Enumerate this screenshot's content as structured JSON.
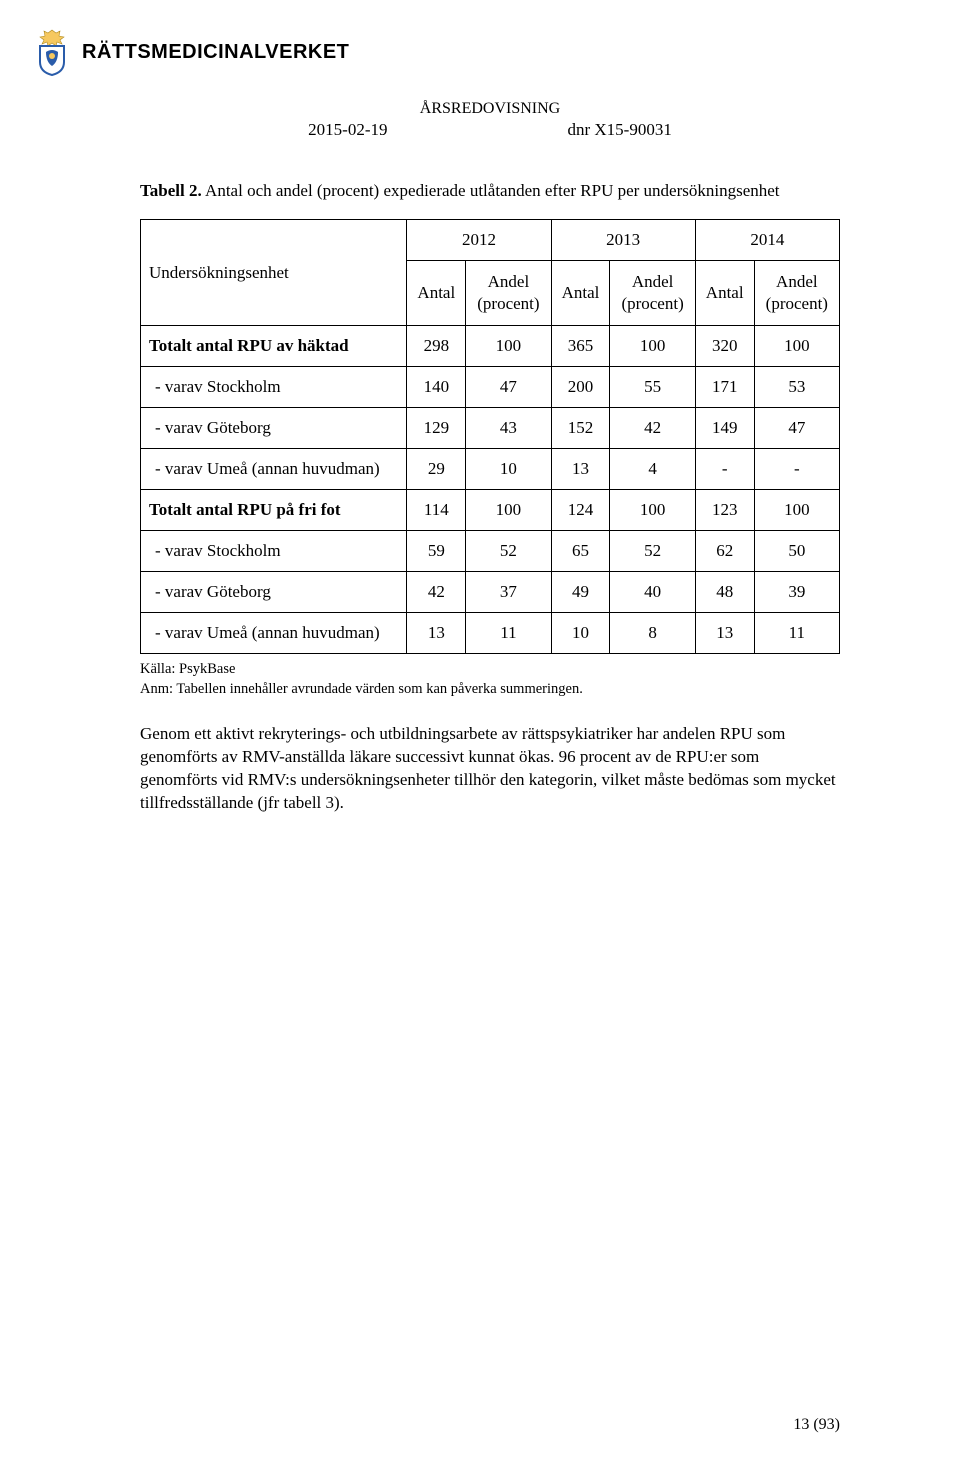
{
  "logo": {
    "org_name": "RÄTTSMEDICINALVERKET",
    "crown_fill": "#f6c85f",
    "shield_border": "#2a5caa",
    "shield_fill": "#ffffff",
    "crest_accent": "#2a5caa"
  },
  "header": {
    "title": "ÅRSREDOVISNING",
    "date": "2015-02-19",
    "dnr": "dnr X15-90031"
  },
  "caption": {
    "label": "Tabell 2.",
    "text": " Antal och andel (procent) expedierade utlåtanden efter RPU per undersökningsenhet"
  },
  "table": {
    "years": [
      "2012",
      "2013",
      "2014"
    ],
    "rowhead": "Undersökningsenhet",
    "subheads": {
      "antal": "Antal",
      "andel": "Andel\n(procent)"
    },
    "rows": [
      {
        "label": "Totalt antal RPU av häktad",
        "bold": true,
        "indent": false,
        "vals": [
          "298",
          "100",
          "365",
          "100",
          "320",
          "100"
        ]
      },
      {
        "label": "- varav Stockholm",
        "bold": false,
        "indent": true,
        "vals": [
          "140",
          "47",
          "200",
          "55",
          "171",
          "53"
        ]
      },
      {
        "label": "- varav Göteborg",
        "bold": false,
        "indent": true,
        "vals": [
          "129",
          "43",
          "152",
          "42",
          "149",
          "47"
        ]
      },
      {
        "label": "- varav Umeå (annan huvudman)",
        "bold": false,
        "indent": true,
        "vals": [
          "29",
          "10",
          "13",
          "4",
          "-",
          "-"
        ]
      },
      {
        "label": "Totalt antal RPU på fri fot",
        "bold": true,
        "indent": false,
        "vals": [
          "114",
          "100",
          "124",
          "100",
          "123",
          "100"
        ]
      },
      {
        "label": "- varav Stockholm",
        "bold": false,
        "indent": true,
        "vals": [
          "59",
          "52",
          "65",
          "52",
          "62",
          "50"
        ]
      },
      {
        "label": "- varav Göteborg",
        "bold": false,
        "indent": true,
        "vals": [
          "42",
          "37",
          "49",
          "40",
          "48",
          "39"
        ]
      },
      {
        "label": "- varav Umeå (annan huvudman)",
        "bold": false,
        "indent": true,
        "vals": [
          "13",
          "11",
          "10",
          "8",
          "13",
          "11"
        ]
      }
    ]
  },
  "source": {
    "line1": "Källa: PsykBase",
    "line2": "Anm: Tabellen innehåller avrundade värden som kan påverka summeringen."
  },
  "paragraph": "Genom ett aktivt rekryterings- och utbildningsarbete av rättspsykiatriker har andelen RPU som genomförts av RMV-anställda läkare successivt kunnat ökas. 96 procent av de RPU:er som genomförts vid RMV:s undersökningsenheter tillhör den kategorin, vilket måste bedömas som mycket tillfredsställande (jfr tabell 3).",
  "page_num": "13 (93)"
}
